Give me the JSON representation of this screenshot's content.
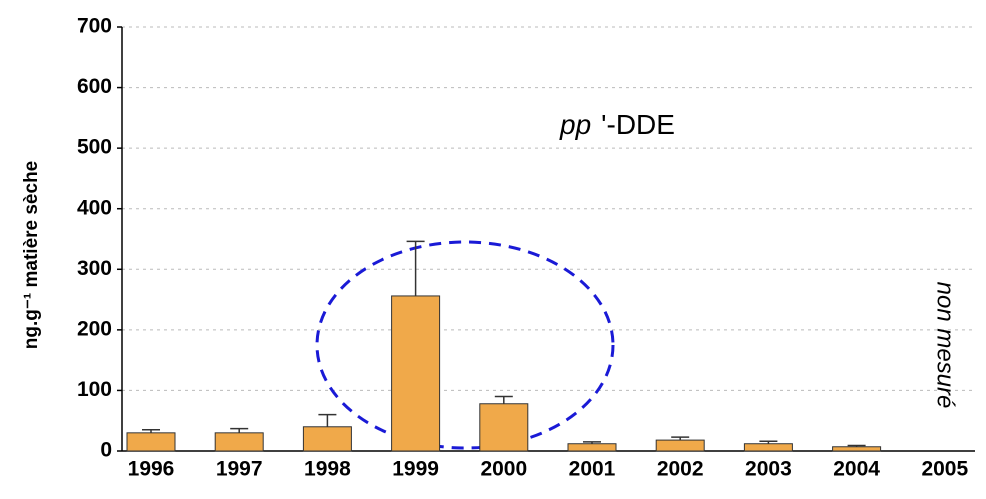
{
  "chart_data": {
    "type": "bar",
    "title_italic": "pp",
    "title_rest": "'-DDE",
    "ylabel": "ng.g⁻¹ matière sèche",
    "annotation": "non mesuré",
    "categories": [
      "1996",
      "1997",
      "1998",
      "1999",
      "2000",
      "2001",
      "2002",
      "2003",
      "2004",
      "2005"
    ],
    "values": [
      30,
      30,
      40,
      256,
      78,
      12,
      18,
      12,
      7,
      null
    ],
    "errors": [
      5,
      7,
      20,
      90,
      12,
      3,
      5,
      4,
      2,
      null
    ],
    "color": "#f0a94a",
    "ylim": [
      0,
      700
    ],
    "yticks": [
      0,
      100,
      200,
      300,
      400,
      500,
      600,
      700
    ],
    "grid": true
  }
}
